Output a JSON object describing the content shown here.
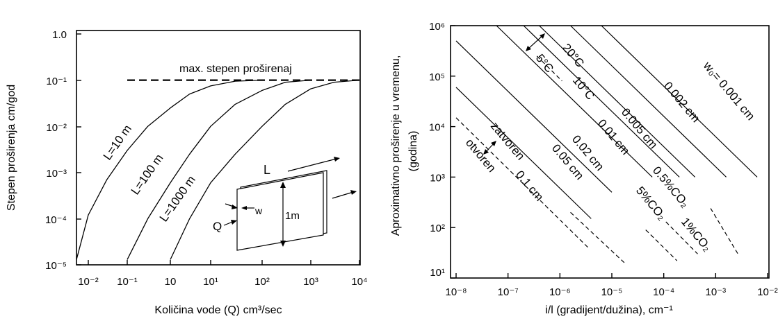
{
  "chart_data": [
    {
      "type": "line",
      "xlabel": "Količina vode (Q) cm³/sec",
      "ylabel": "Stepen proširenja cm/god",
      "xscale": "log",
      "yscale": "log",
      "xlim": [
        0.003,
        10000
      ],
      "ylim": [
        1e-05,
        1
      ],
      "grid": false,
      "x_tick_labels": [
        "10⁻²",
        "10⁻¹",
        "10",
        "10¹",
        "10²",
        "10³",
        "10⁴"
      ],
      "y_tick_labels": [
        "1.0",
        "10⁻¹",
        "10⁻²",
        "10⁻³",
        "10⁻⁴",
        "10⁻⁵"
      ],
      "max_line": {
        "label": "max. stepen proširenaj",
        "y": 0.1,
        "x_from": 0.1,
        "x_to": 10000,
        "style": "dashed"
      },
      "series": [
        {
          "name": "L=10 m",
          "x": [
            0.003,
            0.01,
            0.03,
            0.1,
            0.3,
            1,
            3,
            10,
            30,
            100
          ],
          "y": [
            1.3e-05,
            0.00012,
            0.0007,
            0.003,
            0.01,
            0.025,
            0.05,
            0.075,
            0.095,
            0.1
          ]
        },
        {
          "name": "L=100 m",
          "x": [
            0.1,
            0.3,
            1,
            3,
            10,
            30,
            100,
            300,
            1000
          ],
          "y": [
            1.3e-05,
            0.0001,
            0.0006,
            0.0025,
            0.01,
            0.03,
            0.06,
            0.09,
            0.1
          ]
        },
        {
          "name": "L=1000 m",
          "x": [
            1,
            3,
            10,
            30,
            100,
            300,
            1000,
            3000,
            10000
          ],
          "y": [
            1.3e-05,
            0.0001,
            0.0006,
            0.0025,
            0.01,
            0.03,
            0.065,
            0.09,
            0.1
          ]
        }
      ],
      "inset": {
        "L": "L",
        "w": "w",
        "Q": "Q",
        "height": "1m"
      }
    },
    {
      "type": "line",
      "xlabel": "i/l (gradijent/dužina), cm⁻¹",
      "ylabel_line1": "Aproximativno proširenje u vremenu,",
      "ylabel_line2": "(godina)",
      "xscale": "log",
      "yscale": "log",
      "xlim": [
        1e-08,
        0.01
      ],
      "ylim": [
        10,
        1000000
      ],
      "grid": false,
      "x_tick_labels": [
        "10⁻⁸",
        "10⁻⁷",
        "10⁻⁶",
        "10⁻⁵",
        "10⁻⁴",
        "10⁻³",
        "10⁻²"
      ],
      "y_tick_labels": [
        "10⁶",
        "10⁵",
        "10⁴",
        "10³",
        "10²",
        "10¹"
      ],
      "series": [
        {
          "name": "w₀= 0.001 cm",
          "style": "solid",
          "x": [
            6.3e-06,
            0.0063
          ],
          "y": [
            1000000,
            1000
          ]
        },
        {
          "name": "0.002 cm",
          "style": "solid",
          "x": [
            1.6e-06,
            0.0016
          ],
          "y": [
            1000000,
            1000
          ]
        },
        {
          "name": "0.005 cm",
          "style": "solid",
          "x": [
            4e-07,
            0.0004
          ],
          "y": [
            1000000,
            1000
          ]
        },
        {
          "name": "0.01 cm",
          "style": "solid",
          "x": [
            2e-07,
            0.0002
          ],
          "y": [
            1000000,
            1000
          ]
        },
        {
          "name": "0.02 cm",
          "style": "solid",
          "x": [
            6e-08,
            6e-05
          ],
          "y": [
            1000000,
            1000
          ]
        },
        {
          "name": "0.05 cm",
          "style": "solid",
          "x": [
            1e-08,
            1e-05
          ],
          "y": [
            500000,
            500
          ]
        },
        {
          "name": "0.1 cm",
          "style": "solid",
          "x": [
            1e-08,
            4e-06
          ],
          "y": [
            60000,
            150
          ]
        },
        {
          "name": "",
          "style": "dashed",
          "x": [
            1e-08,
            3.5e-06
          ],
          "y": [
            15000,
            40
          ]
        },
        {
          "name": "",
          "style": "dashed",
          "x": [
            1.6e-06,
            1.75e-05
          ],
          "y": [
            200,
            20
          ]
        },
        {
          "name": "",
          "style": "dashed",
          "x": [
            4.5e-05,
            0.00018
          ],
          "y": [
            90,
            22
          ]
        },
        {
          "name": "",
          "style": "dashed",
          "x": [
            0.00011,
            0.00045
          ],
          "y": [
            130,
            30
          ]
        },
        {
          "name": "",
          "style": "dashed",
          "x": [
            0.0008,
            0.0028
          ],
          "y": [
            240,
            28
          ]
        },
        {
          "name": "",
          "style": "dashed",
          "x": [
            3.6e-07,
            1.1e-06
          ],
          "y": [
            250000,
            80000
          ]
        }
      ],
      "annotations": {
        "t20": "20°C",
        "t5": "5°C",
        "t10": "10°C",
        "zatvoren": "zatvoren",
        "otvoren": "otvoren",
        "co2_05": "0.5%CO₂",
        "co2_5": "5%CO₂",
        "co2_1": "1%CO₂"
      }
    }
  ]
}
